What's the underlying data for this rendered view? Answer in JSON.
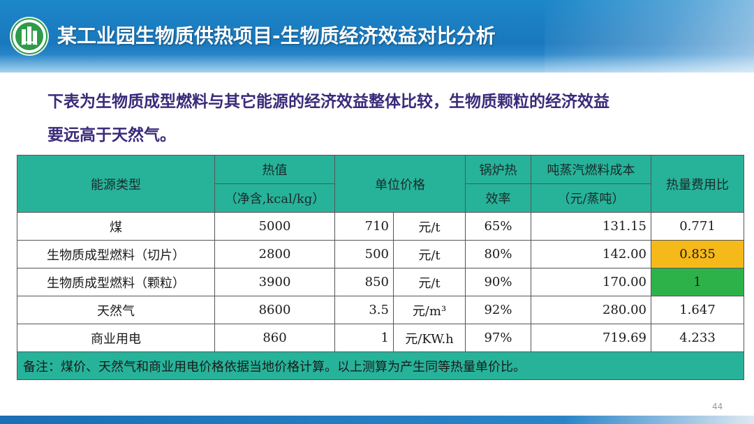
{
  "header": {
    "title": "某工业园生物质供热项目-生物质经济效益对比分析"
  },
  "intro": {
    "line1": "下表为生物质成型燃料与其它能源的经济效益整体比较，生物质颗粒的经济效益",
    "line2": "要远高于天然气。"
  },
  "table": {
    "headers": {
      "energy_type": "能源类型",
      "calorific_top": "热值",
      "calorific_bottom": "（净含,kcal/kg）",
      "unit_price": "单位价格",
      "efficiency_top": "锅炉热",
      "efficiency_bottom": "效率",
      "cost_top": "吨蒸汽燃料成本",
      "cost_bottom": "（元/蒸吨）",
      "ratio": "热量费用比"
    },
    "rows": [
      {
        "name": "煤",
        "heat": "5000",
        "price": "710",
        "unit": "元/t",
        "eff": "65%",
        "cost": "131.15",
        "ratio": "0.771"
      },
      {
        "name": "生物质成型燃料（切片）",
        "heat": "2800",
        "price": "500",
        "unit": "元/t",
        "eff": "80%",
        "cost": "142.00",
        "ratio": "0.835"
      },
      {
        "name": "生物质成型燃料（颗粒）",
        "heat": "3900",
        "price": "850",
        "unit": "元/t",
        "eff": "90%",
        "cost": "170.00",
        "ratio": "1"
      },
      {
        "name": "天然气",
        "heat": "8600",
        "price": "3.5",
        "unit": "元/m³",
        "eff": "92%",
        "cost": "280.00",
        "ratio": "1.647"
      },
      {
        "name": "商业用电",
        "heat": "860",
        "price": "1",
        "unit": "元/KW.h",
        "eff": "97%",
        "cost": "719.69",
        "ratio": "4.233"
      }
    ],
    "note": "备注：煤价、天然气和商业用电价格依据当地价格计算。以上测算为产生同等热量单价比。"
  },
  "colors": {
    "header_blue": "#1c87c9",
    "table_header_teal": "#27b39a",
    "highlight_orange": "#f5b91a",
    "highlight_green": "#2db24a",
    "intro_text": "#3b2a7a"
  },
  "page": {
    "number": "44"
  }
}
